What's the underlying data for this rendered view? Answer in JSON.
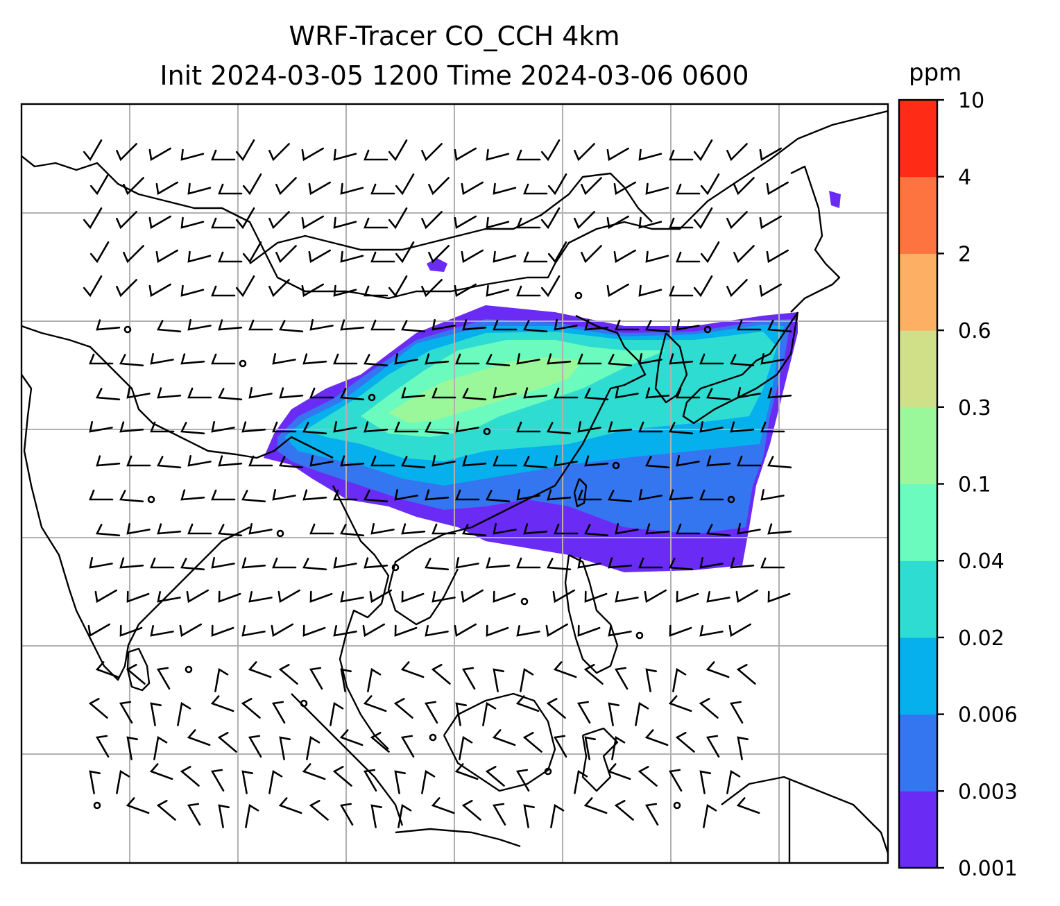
{
  "title": {
    "line1": "WRF-Tracer CO_CCH 4km",
    "line2": "Init 2024-03-05 1200 Time 2024-03-06 0600"
  },
  "colorbar": {
    "unit": "ppm",
    "ticks": [
      "0.001",
      "0.003",
      "0.006",
      "0.02",
      "0.04",
      "0.1",
      "0.3",
      "0.6",
      "2",
      "4",
      "10"
    ],
    "colors": [
      "#6a2cf5",
      "#3476f0",
      "#05b0ec",
      "#2fdcd2",
      "#6bfbbf",
      "#9af89a",
      "#cfe088",
      "#fdb063",
      "#fe7440",
      "#fe2c17"
    ]
  },
  "map": {
    "gridlines": true,
    "gridline_color": "#b0b0b0",
    "coastline_color": "#000000"
  }
}
